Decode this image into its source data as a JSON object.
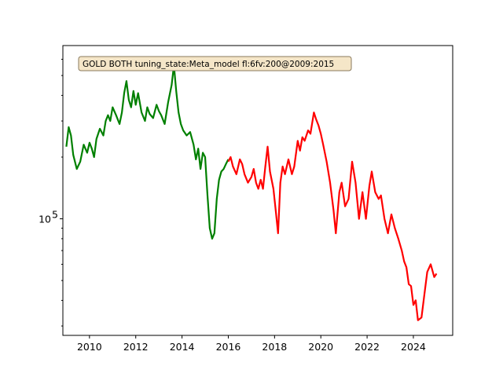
{
  "chart_data": {
    "type": "line",
    "title": "",
    "xlabel": "",
    "ylabel": "",
    "annotation": "GOLD BOTH tuning_state:Meta_model fl:6fv:200@2009:2015",
    "y_scale": "log",
    "xlim": [
      2008.85,
      2025.7
    ],
    "ylim": [
      27000,
      700000
    ],
    "x_ticks": [
      2010,
      2012,
      2014,
      2016,
      2018,
      2020,
      2022,
      2024
    ],
    "x_tick_labels": [
      "2010",
      "2012",
      "2014",
      "2016",
      "2018",
      "2020",
      "2022",
      "2024"
    ],
    "y_ticks": [
      100000
    ],
    "y_tick_labels": [
      "10^5"
    ],
    "grid": false,
    "series": [
      {
        "color": "#008000",
        "x": [
          2009.0,
          2009.1,
          2009.2,
          2009.3,
          2009.45,
          2009.6,
          2009.75,
          2009.9,
          2010.0,
          2010.1,
          2010.2,
          2010.3,
          2010.45,
          2010.6,
          2010.7,
          2010.8,
          2010.9,
          2011.0,
          2011.15,
          2011.3,
          2011.4,
          2011.5,
          2011.6,
          2011.7,
          2011.8,
          2011.9,
          2012.0,
          2012.1,
          2012.25,
          2012.4,
          2012.5,
          2012.6,
          2012.75,
          2012.9,
          2013.0,
          2013.1,
          2013.25,
          2013.4,
          2013.55,
          2013.65,
          2013.75,
          2013.85,
          2013.95,
          2014.05,
          2014.2,
          2014.35,
          2014.5,
          2014.6,
          2014.7,
          2014.8,
          2014.9,
          2015.0,
          2015.1,
          2015.2,
          2015.3,
          2015.4,
          2015.5,
          2015.6,
          2015.7,
          2015.8,
          2015.9,
          2016.0
        ],
        "y": [
          225000,
          280000,
          255000,
          205000,
          175000,
          190000,
          230000,
          210000,
          235000,
          220000,
          200000,
          245000,
          275000,
          255000,
          300000,
          320000,
          300000,
          350000,
          320000,
          290000,
          330000,
          410000,
          470000,
          380000,
          350000,
          420000,
          360000,
          410000,
          330000,
          300000,
          350000,
          325000,
          310000,
          360000,
          335000,
          320000,
          290000,
          370000,
          450000,
          560000,
          420000,
          330000,
          290000,
          270000,
          255000,
          265000,
          230000,
          195000,
          220000,
          175000,
          210000,
          200000,
          130000,
          90000,
          80000,
          85000,
          125000,
          155000,
          170000,
          175000,
          185000,
          195000
        ]
      },
      {
        "color": "#ff0000",
        "x": [
          2016.0,
          2016.1,
          2016.2,
          2016.35,
          2016.5,
          2016.6,
          2016.7,
          2016.85,
          2017.0,
          2017.1,
          2017.2,
          2017.3,
          2017.4,
          2017.5,
          2017.6,
          2017.7,
          2017.8,
          2017.95,
          2018.05,
          2018.15,
          2018.25,
          2018.35,
          2018.45,
          2018.6,
          2018.75,
          2018.85,
          2019.0,
          2019.1,
          2019.2,
          2019.3,
          2019.45,
          2019.55,
          2019.7,
          2019.8,
          2019.9,
          2020.0,
          2020.1,
          2020.25,
          2020.4,
          2020.55,
          2020.65,
          2020.8,
          2020.9,
          2021.05,
          2021.2,
          2021.35,
          2021.5,
          2021.65,
          2021.8,
          2021.95,
          2022.1,
          2022.2,
          2022.35,
          2022.5,
          2022.6,
          2022.75,
          2022.9,
          2023.05,
          2023.2,
          2023.35,
          2023.5,
          2023.6,
          2023.7,
          2023.8,
          2023.9,
          2024.0,
          2024.1,
          2024.2,
          2024.35,
          2024.5,
          2024.6,
          2024.75,
          2024.9,
          2025.0
        ],
        "y": [
          190000,
          200000,
          180000,
          165000,
          195000,
          185000,
          165000,
          150000,
          160000,
          175000,
          150000,
          140000,
          155000,
          140000,
          180000,
          225000,
          170000,
          140000,
          110000,
          85000,
          150000,
          180000,
          165000,
          195000,
          165000,
          180000,
          240000,
          215000,
          250000,
          240000,
          270000,
          260000,
          330000,
          305000,
          285000,
          260000,
          230000,
          190000,
          150000,
          110000,
          85000,
          135000,
          150000,
          115000,
          125000,
          190000,
          150000,
          100000,
          135000,
          100000,
          145000,
          170000,
          135000,
          125000,
          130000,
          100000,
          85000,
          105000,
          90000,
          80000,
          70000,
          62000,
          58000,
          48000,
          47000,
          38000,
          40000,
          32000,
          33000,
          45000,
          55000,
          60000,
          52000,
          54000
        ]
      }
    ]
  }
}
